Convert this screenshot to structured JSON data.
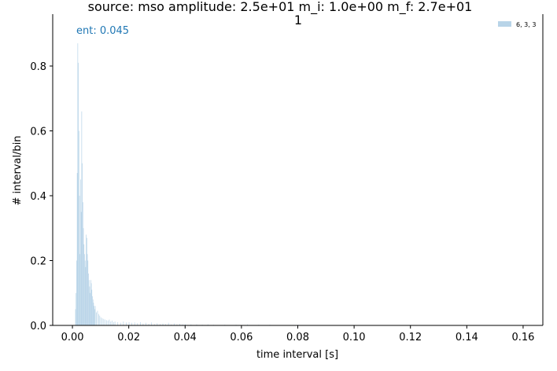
{
  "chart_data": {
    "type": "bar",
    "title_line1": "source: mso amplitude: 2.5e+01 m_i: 1.0e+00 m_f: 2.7e+01",
    "title_line2": "1",
    "xlabel": "time interval [s]",
    "ylabel": "# interval/bin",
    "xlim": [
      -0.007,
      0.167
    ],
    "ylim": [
      0,
      0.96
    ],
    "xticks": [
      "0.00",
      "0.02",
      "0.04",
      "0.06",
      "0.08",
      "0.10",
      "0.12",
      "0.14",
      "0.16"
    ],
    "yticks": [
      "0.0",
      "0.2",
      "0.4",
      "0.6",
      "0.8"
    ],
    "legend_position": "top-right",
    "annotation": {
      "text": "ent: 0.045",
      "color": "#1f77b4"
    },
    "series": [
      {
        "name": "6, 3, 3",
        "color": "#b8d4e8",
        "x": [
          0.001,
          0.0012,
          0.0014,
          0.0016,
          0.0018,
          0.002,
          0.0022,
          0.0024,
          0.0026,
          0.0028,
          0.003,
          0.0032,
          0.0034,
          0.0036,
          0.0038,
          0.004,
          0.0042,
          0.0044,
          0.0046,
          0.0048,
          0.005,
          0.0052,
          0.0054,
          0.0056,
          0.0058,
          0.006,
          0.0062,
          0.0064,
          0.0066,
          0.0068,
          0.007,
          0.0072,
          0.0074,
          0.0076,
          0.0078,
          0.008,
          0.0084,
          0.0088,
          0.0092,
          0.0096,
          0.01,
          0.0105,
          0.011,
          0.0115,
          0.012,
          0.0125,
          0.013,
          0.0135,
          0.014,
          0.0145,
          0.015,
          0.016,
          0.017,
          0.018,
          0.019,
          0.02,
          0.021,
          0.022,
          0.023,
          0.024,
          0.025,
          0.026,
          0.027,
          0.028,
          0.029,
          0.03,
          0.031,
          0.032,
          0.033,
          0.034,
          0.035,
          0.036,
          0.037,
          0.038,
          0.039,
          0.04,
          0.042,
          0.044,
          0.046,
          0.048,
          0.05,
          0.054,
          0.058,
          0.062,
          0.066,
          0.07,
          0.075,
          0.08,
          0.085,
          0.09,
          0.095,
          0.1
        ],
        "values": [
          0.05,
          0.1,
          0.2,
          0.47,
          0.87,
          0.81,
          0.6,
          0.4,
          0.22,
          0.45,
          0.35,
          0.66,
          0.5,
          0.38,
          0.3,
          0.25,
          0.22,
          0.2,
          0.18,
          0.28,
          0.27,
          0.22,
          0.2,
          0.16,
          0.14,
          0.12,
          0.1,
          0.14,
          0.13,
          0.11,
          0.09,
          0.08,
          0.07,
          0.06,
          0.05,
          0.06,
          0.04,
          0.045,
          0.035,
          0.03,
          0.025,
          0.022,
          0.02,
          0.018,
          0.016,
          0.015,
          0.018,
          0.012,
          0.015,
          0.01,
          0.012,
          0.01,
          0.008,
          0.012,
          0.009,
          0.01,
          0.008,
          0.009,
          0.007,
          0.01,
          0.006,
          0.008,
          0.005,
          0.009,
          0.004,
          0.007,
          0.004,
          0.006,
          0.004,
          0.008,
          0.003,
          0.006,
          0.003,
          0.005,
          0.003,
          0.004,
          0.003,
          0.003,
          0.002,
          0.003,
          0.002,
          0.002,
          0.002,
          0.003,
          0.002,
          0.002,
          0.001,
          0.002,
          0.001,
          0.001,
          0.001,
          0.001
        ]
      }
    ]
  }
}
